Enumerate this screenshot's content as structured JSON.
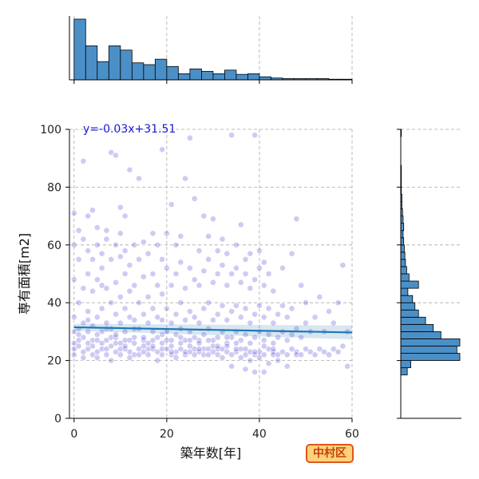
{
  "chart_data": {
    "type": "scatter",
    "title": "",
    "xlabel": "築年数[年]",
    "ylabel": "専有面積[m2]",
    "xlim": [
      -1,
      60
    ],
    "ylim": [
      0,
      100
    ],
    "x_ticks": [
      0,
      20,
      40,
      60
    ],
    "y_ticks": [
      0,
      20,
      40,
      60,
      80,
      100
    ],
    "grid": true,
    "colors": {
      "points": "#3a2fd0",
      "regression": "#1f77b4",
      "hist_fill": "#4b8fc7",
      "hist_edge": "#000000",
      "equation": "#1a1ad6"
    },
    "regression": {
      "slope": -0.03,
      "intercept": 31.51,
      "equation": "y=-0.03x+31.51"
    },
    "point_opacity": 0.25,
    "points": [
      [
        0,
        24
      ],
      [
        0,
        30
      ],
      [
        0,
        35
      ],
      [
        0,
        48
      ],
      [
        0,
        60
      ],
      [
        0,
        71
      ],
      [
        0,
        22
      ],
      [
        0,
        26
      ],
      [
        1,
        25
      ],
      [
        1,
        31
      ],
      [
        1,
        40
      ],
      [
        1,
        55
      ],
      [
        1,
        65
      ],
      [
        1,
        27
      ],
      [
        2,
        23
      ],
      [
        2,
        28
      ],
      [
        2,
        33
      ],
      [
        2,
        45
      ],
      [
        2,
        62
      ],
      [
        2,
        89
      ],
      [
        2,
        21
      ],
      [
        3,
        24
      ],
      [
        3,
        30
      ],
      [
        3,
        37
      ],
      [
        3,
        50
      ],
      [
        3,
        58
      ],
      [
        3,
        70
      ],
      [
        3,
        26
      ],
      [
        4,
        22
      ],
      [
        4,
        27
      ],
      [
        4,
        32
      ],
      [
        4,
        44
      ],
      [
        4,
        55
      ],
      [
        4,
        72
      ],
      [
        4,
        25
      ],
      [
        5,
        23
      ],
      [
        5,
        29
      ],
      [
        5,
        35
      ],
      [
        5,
        48
      ],
      [
        5,
        60
      ],
      [
        5,
        66
      ],
      [
        5,
        21
      ],
      [
        6,
        24
      ],
      [
        6,
        30
      ],
      [
        6,
        38
      ],
      [
        6,
        52
      ],
      [
        6,
        57
      ],
      [
        6,
        26
      ],
      [
        6,
        46
      ],
      [
        7,
        22
      ],
      [
        7,
        27
      ],
      [
        7,
        33
      ],
      [
        7,
        45
      ],
      [
        7,
        62
      ],
      [
        7,
        65
      ],
      [
        7,
        24
      ],
      [
        8,
        25
      ],
      [
        8,
        31
      ],
      [
        8,
        40
      ],
      [
        8,
        55
      ],
      [
        8,
        92
      ],
      [
        8,
        28
      ],
      [
        8,
        20
      ],
      [
        9,
        23
      ],
      [
        9,
        28
      ],
      [
        9,
        36
      ],
      [
        9,
        47
      ],
      [
        9,
        60
      ],
      [
        9,
        91
      ],
      [
        9,
        26
      ],
      [
        10,
        22
      ],
      [
        10,
        26
      ],
      [
        10,
        33
      ],
      [
        10,
        42
      ],
      [
        10,
        56
      ],
      [
        10,
        64
      ],
      [
        10,
        73
      ],
      [
        10,
        24
      ],
      [
        11,
        24
      ],
      [
        11,
        30
      ],
      [
        11,
        38
      ],
      [
        11,
        50
      ],
      [
        11,
        58
      ],
      [
        11,
        70
      ],
      [
        11,
        27
      ],
      [
        12,
        23
      ],
      [
        12,
        27
      ],
      [
        12,
        35
      ],
      [
        12,
        44
      ],
      [
        12,
        53
      ],
      [
        12,
        86
      ],
      [
        12,
        21
      ],
      [
        13,
        22
      ],
      [
        13,
        28
      ],
      [
        13,
        34
      ],
      [
        13,
        46
      ],
      [
        13,
        60
      ],
      [
        13,
        26
      ],
      [
        14,
        24
      ],
      [
        14,
        31
      ],
      [
        14,
        40
      ],
      [
        14,
        55
      ],
      [
        14,
        83
      ],
      [
        14,
        22
      ],
      [
        15,
        23
      ],
      [
        15,
        27
      ],
      [
        15,
        36
      ],
      [
        15,
        49
      ],
      [
        15,
        61
      ],
      [
        15,
        28
      ],
      [
        16,
        22
      ],
      [
        16,
        26
      ],
      [
        16,
        33
      ],
      [
        16,
        42
      ],
      [
        16,
        57
      ],
      [
        16,
        24
      ],
      [
        17,
        24
      ],
      [
        17,
        30
      ],
      [
        17,
        38
      ],
      [
        17,
        50
      ],
      [
        17,
        64
      ],
      [
        17,
        25
      ],
      [
        18,
        23
      ],
      [
        18,
        28
      ],
      [
        18,
        35
      ],
      [
        18,
        46
      ],
      [
        18,
        60
      ],
      [
        18,
        20
      ],
      [
        19,
        22
      ],
      [
        19,
        26
      ],
      [
        19,
        34
      ],
      [
        19,
        43
      ],
      [
        19,
        55
      ],
      [
        19,
        93
      ],
      [
        19,
        24
      ],
      [
        20,
        24
      ],
      [
        20,
        30
      ],
      [
        20,
        38
      ],
      [
        20,
        52
      ],
      [
        20,
        64
      ],
      [
        20,
        27
      ],
      [
        21,
        22
      ],
      [
        21,
        27
      ],
      [
        21,
        33
      ],
      [
        21,
        46
      ],
      [
        21,
        74
      ],
      [
        21,
        25
      ],
      [
        22,
        23
      ],
      [
        22,
        29
      ],
      [
        22,
        36
      ],
      [
        22,
        50
      ],
      [
        22,
        60
      ],
      [
        22,
        21
      ],
      [
        23,
        24
      ],
      [
        23,
        31
      ],
      [
        23,
        40
      ],
      [
        23,
        54
      ],
      [
        23,
        63
      ],
      [
        23,
        26
      ],
      [
        24,
        22
      ],
      [
        24,
        27
      ],
      [
        24,
        34
      ],
      [
        24,
        45
      ],
      [
        24,
        83
      ],
      [
        24,
        23
      ],
      [
        25,
        23
      ],
      [
        25,
        30
      ],
      [
        25,
        37
      ],
      [
        25,
        52
      ],
      [
        25,
        97
      ],
      [
        25,
        25
      ],
      [
        26,
        24
      ],
      [
        26,
        28
      ],
      [
        26,
        35
      ],
      [
        26,
        48
      ],
      [
        26,
        76
      ],
      [
        26,
        22
      ],
      [
        27,
        23
      ],
      [
        27,
        27
      ],
      [
        27,
        33
      ],
      [
        27,
        46
      ],
      [
        27,
        58
      ],
      [
        27,
        26
      ],
      [
        28,
        22
      ],
      [
        28,
        29
      ],
      [
        28,
        38
      ],
      [
        28,
        51
      ],
      [
        28,
        70
      ],
      [
        28,
        24
      ],
      [
        29,
        24
      ],
      [
        29,
        31
      ],
      [
        29,
        40
      ],
      [
        29,
        55
      ],
      [
        29,
        63
      ],
      [
        29,
        22
      ],
      [
        30,
        23
      ],
      [
        30,
        27
      ],
      [
        30,
        34
      ],
      [
        30,
        47
      ],
      [
        30,
        69
      ],
      [
        30,
        25
      ],
      [
        31,
        22
      ],
      [
        31,
        28
      ],
      [
        31,
        36
      ],
      [
        31,
        50
      ],
      [
        31,
        58
      ],
      [
        31,
        24
      ],
      [
        32,
        24
      ],
      [
        32,
        30
      ],
      [
        32,
        39
      ],
      [
        32,
        53
      ],
      [
        32,
        62
      ],
      [
        32,
        21
      ],
      [
        33,
        23
      ],
      [
        33,
        26
      ],
      [
        33,
        34
      ],
      [
        33,
        46
      ],
      [
        33,
        57
      ],
      [
        33,
        25
      ],
      [
        34,
        22
      ],
      [
        34,
        28
      ],
      [
        34,
        37
      ],
      [
        34,
        50
      ],
      [
        34,
        98
      ],
      [
        34,
        18
      ],
      [
        35,
        23
      ],
      [
        35,
        30
      ],
      [
        35,
        39
      ],
      [
        35,
        52
      ],
      [
        35,
        60
      ],
      [
        35,
        24
      ],
      [
        36,
        24
      ],
      [
        36,
        27
      ],
      [
        36,
        35
      ],
      [
        36,
        47
      ],
      [
        36,
        67
      ],
      [
        36,
        21
      ],
      [
        37,
        22
      ],
      [
        37,
        29
      ],
      [
        37,
        38
      ],
      [
        37,
        50
      ],
      [
        37,
        55
      ],
      [
        37,
        17
      ],
      [
        38,
        23
      ],
      [
        38,
        26
      ],
      [
        38,
        33
      ],
      [
        38,
        45
      ],
      [
        38,
        57
      ],
      [
        38,
        20
      ],
      [
        39,
        22
      ],
      [
        39,
        28
      ],
      [
        39,
        36
      ],
      [
        39,
        48
      ],
      [
        39,
        98
      ],
      [
        39,
        16
      ],
      [
        40,
        23
      ],
      [
        40,
        30
      ],
      [
        40,
        39
      ],
      [
        40,
        52
      ],
      [
        40,
        58
      ],
      [
        40,
        21
      ],
      [
        41,
        22
      ],
      [
        41,
        27
      ],
      [
        41,
        35
      ],
      [
        41,
        46
      ],
      [
        41,
        54
      ],
      [
        41,
        16
      ],
      [
        42,
        24
      ],
      [
        42,
        29
      ],
      [
        42,
        38
      ],
      [
        42,
        50
      ],
      [
        42,
        19
      ],
      [
        43,
        23
      ],
      [
        43,
        26
      ],
      [
        43,
        33
      ],
      [
        43,
        44
      ],
      [
        43,
        22
      ],
      [
        44,
        22
      ],
      [
        44,
        28
      ],
      [
        44,
        36
      ],
      [
        44,
        20
      ],
      [
        45,
        23
      ],
      [
        45,
        30
      ],
      [
        45,
        39
      ],
      [
        45,
        52
      ],
      [
        46,
        22
      ],
      [
        46,
        27
      ],
      [
        46,
        35
      ],
      [
        46,
        18
      ],
      [
        47,
        24
      ],
      [
        47,
        29
      ],
      [
        47,
        38
      ],
      [
        47,
        57
      ],
      [
        48,
        23
      ],
      [
        48,
        31
      ],
      [
        48,
        69
      ],
      [
        48,
        22
      ],
      [
        49,
        22
      ],
      [
        49,
        28
      ],
      [
        49,
        46
      ],
      [
        50,
        24
      ],
      [
        50,
        33
      ],
      [
        50,
        40
      ],
      [
        51,
        23
      ],
      [
        51,
        30
      ],
      [
        52,
        22
      ],
      [
        52,
        35
      ],
      [
        53,
        24
      ],
      [
        53,
        42
      ],
      [
        54,
        23
      ],
      [
        54,
        30
      ],
      [
        55,
        22
      ],
      [
        55,
        37
      ],
      [
        56,
        24
      ],
      [
        56,
        33
      ],
      [
        57,
        23
      ],
      [
        57,
        40
      ],
      [
        58,
        25
      ],
      [
        58,
        53
      ],
      [
        59,
        18
      ],
      [
        59,
        30
      ],
      [
        1,
        29
      ],
      [
        3,
        34
      ],
      [
        5,
        27
      ],
      [
        7,
        31
      ],
      [
        9,
        29
      ],
      [
        11,
        25
      ],
      [
        13,
        31
      ],
      [
        15,
        25
      ],
      [
        17,
        27
      ],
      [
        19,
        29
      ],
      [
        21,
        23
      ],
      [
        23,
        28
      ],
      [
        25,
        27
      ],
      [
        27,
        24
      ],
      [
        29,
        27
      ],
      [
        31,
        25
      ],
      [
        33,
        28
      ],
      [
        35,
        26
      ],
      [
        37,
        24
      ],
      [
        39,
        23
      ],
      [
        41,
        25
      ],
      [
        43,
        24
      ]
    ],
    "hist_x": {
      "bin_width": 2.5,
      "start": 0,
      "counts": [
        100,
        56,
        30,
        56,
        49,
        28,
        25,
        34,
        22,
        10,
        18,
        14,
        10,
        16,
        9,
        10,
        5,
        3,
        2,
        2,
        2,
        2,
        1,
        1
      ]
    },
    "hist_y": {
      "bin_width": 2.5,
      "start": 15,
      "counts": [
        11,
        17,
        100,
        95,
        100,
        68,
        55,
        42,
        30,
        24,
        20,
        12,
        30,
        14,
        10,
        8,
        7,
        6,
        5,
        4,
        5,
        4,
        3,
        2,
        2,
        1,
        1,
        1,
        1,
        0,
        0,
        0,
        0,
        1,
        0,
        0,
        0,
        0,
        0,
        0,
        0,
        2,
        0,
        1,
        0,
        0,
        0,
        0,
        0,
        0,
        0,
        0,
        0,
        0,
        0,
        0,
        0,
        0,
        0,
        0,
        0,
        0,
        0,
        0,
        0,
        0,
        0,
        0,
        0,
        0,
        0,
        0,
        0,
        0,
        0,
        0,
        0,
        0,
        0,
        0,
        0,
        0,
        0,
        0,
        0,
        0,
        0,
        0,
        0,
        0,
        0,
        0,
        0,
        0,
        0,
        0,
        0,
        0,
        0,
        0
      ]
    }
  },
  "badge": {
    "label": "中村区",
    "bg": "#ffd27a",
    "border": "#e0561c",
    "text": "#c2410c"
  }
}
